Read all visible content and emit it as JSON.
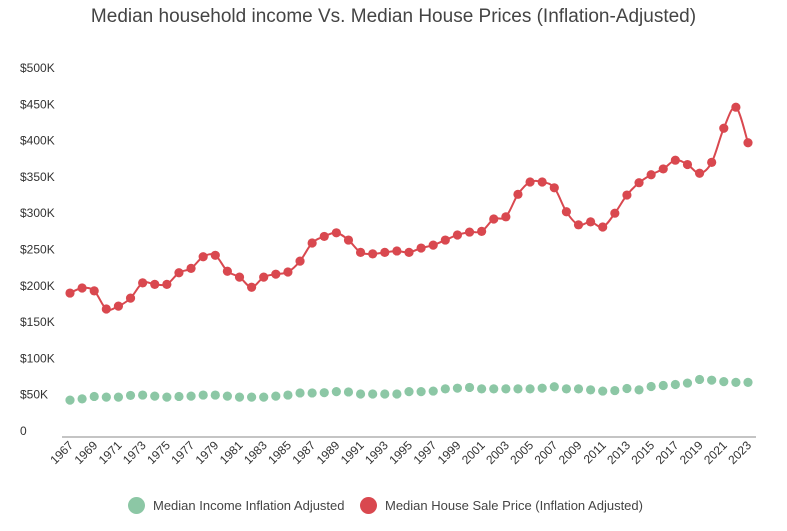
{
  "chart_data": {
    "type": "line",
    "title": "Median household income Vs. Median House Prices (Inflation-Adjusted)",
    "xlabel": "",
    "ylabel": "",
    "ylim": [
      0,
      500000
    ],
    "y_ticks": [
      0,
      50000,
      100000,
      150000,
      200000,
      250000,
      300000,
      350000,
      400000,
      450000,
      500000
    ],
    "y_tick_labels": [
      "0",
      "$50K",
      "$100K",
      "$150K",
      "$200K",
      "$250K",
      "$300K",
      "$350K",
      "$400K",
      "$450K",
      "$500K"
    ],
    "x_tick_labels": [
      "1967",
      "1969",
      "1971",
      "1973",
      "1975",
      "1977",
      "1979",
      "1981",
      "1983",
      "1985",
      "1987",
      "1989",
      "1991",
      "1993",
      "1995",
      "1997",
      "1999",
      "2001",
      "2003",
      "2005",
      "2007",
      "2009",
      "2011",
      "2013",
      "2015",
      "2017",
      "2019",
      "2021",
      "2023"
    ],
    "grid": false,
    "legend_position": "bottom",
    "x": [
      1967,
      1968,
      1969,
      1970,
      1971,
      1972,
      1973,
      1974,
      1975,
      1976,
      1977,
      1978,
      1979,
      1980,
      1981,
      1982,
      1983,
      1984,
      1985,
      1986,
      1987,
      1988,
      1989,
      1990,
      1991,
      1992,
      1993,
      1994,
      1995,
      1996,
      1997,
      1998,
      1999,
      2000,
      2001,
      2002,
      2003,
      2004,
      2005,
      2006,
      2007,
      2008,
      2009,
      2010,
      2011,
      2012,
      2013,
      2014,
      2015,
      2016,
      2017,
      2018,
      2019,
      2020,
      2021,
      2022,
      2023
    ],
    "series": [
      {
        "name": "Median Income Inflation Adjusted",
        "color": "#8cc7a5",
        "style": "markers",
        "values": [
          42500,
          44300,
          47600,
          46700,
          46700,
          49000,
          49500,
          48000,
          46700,
          47600,
          48000,
          49500,
          49500,
          48000,
          46700,
          46700,
          46700,
          48000,
          49500,
          52400,
          52400,
          52800,
          54200,
          53800,
          51000,
          51000,
          51000,
          51000,
          54200,
          54200,
          55000,
          58000,
          59000,
          60000,
          58000,
          58000,
          58000,
          58000,
          58000,
          59000,
          61000,
          58000,
          58000,
          56600,
          55000,
          55700,
          58500,
          56600,
          61300,
          62700,
          64000,
          66000,
          71000,
          70000,
          68000,
          67000,
          67000
        ]
      },
      {
        "name": "Median House Sale Price (Inflation Adjusted)",
        "color": "#d9484f",
        "style": "line+markers",
        "values": [
          190000,
          197000,
          193000,
          168000,
          172000,
          183000,
          204000,
          202000,
          202000,
          218000,
          224000,
          240000,
          242000,
          220000,
          212000,
          198000,
          212000,
          216000,
          219000,
          234000,
          259000,
          268000,
          273000,
          263000,
          246000,
          244000,
          246000,
          248000,
          246000,
          252000,
          256000,
          263000,
          270000,
          274000,
          275000,
          292000,
          295000,
          326000,
          343000,
          343000,
          335000,
          302000,
          284000,
          288000,
          281000,
          300000,
          325000,
          342000,
          353000,
          361000,
          373000,
          367000,
          355000,
          370000,
          417000,
          446000,
          397000
        ]
      }
    ]
  }
}
